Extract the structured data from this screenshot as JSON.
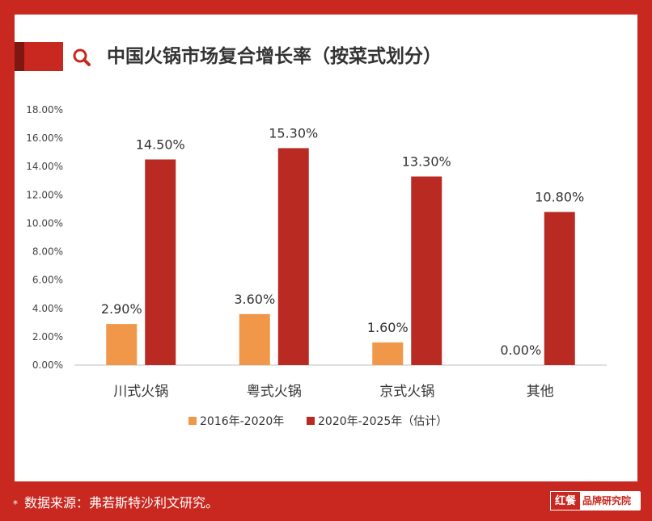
{
  "header": {
    "title": "中国火锅市场复合增长率（按菜式划分）"
  },
  "footer": {
    "star": "*",
    "note": "数据来源：弗若斯特沙利文研究。",
    "brand_logo": "红餐",
    "brand_name": "品牌研究院"
  },
  "colors": {
    "frame": "#c8281f",
    "series_2016_2020": "#f0974a",
    "series_2020_2025": "#b82a22"
  },
  "chart_data": {
    "type": "bar",
    "categories": [
      "川式火锅",
      "粤式火锅",
      "京式火锅",
      "其他"
    ],
    "series": [
      {
        "name": "2016年-2020年",
        "values": [
          2.9,
          3.6,
          1.6,
          0.0
        ],
        "labels": [
          "2.90%",
          "3.60%",
          "1.60%",
          "0.00%"
        ],
        "color": "#f0974a"
      },
      {
        "name": "2020年-2025年（估计）",
        "values": [
          14.5,
          15.3,
          13.3,
          10.8
        ],
        "labels": [
          "14.50%",
          "15.30%",
          "13.30%",
          "10.80%"
        ],
        "color": "#b82a22"
      }
    ],
    "yticks": [
      "0.00%",
      "2.00%",
      "4.00%",
      "6.00%",
      "8.00%",
      "10.00%",
      "12.00%",
      "14.00%",
      "16.00%",
      "18.00%"
    ],
    "ylim": [
      0,
      18
    ],
    "grid": false,
    "legend": "bottom-center"
  }
}
